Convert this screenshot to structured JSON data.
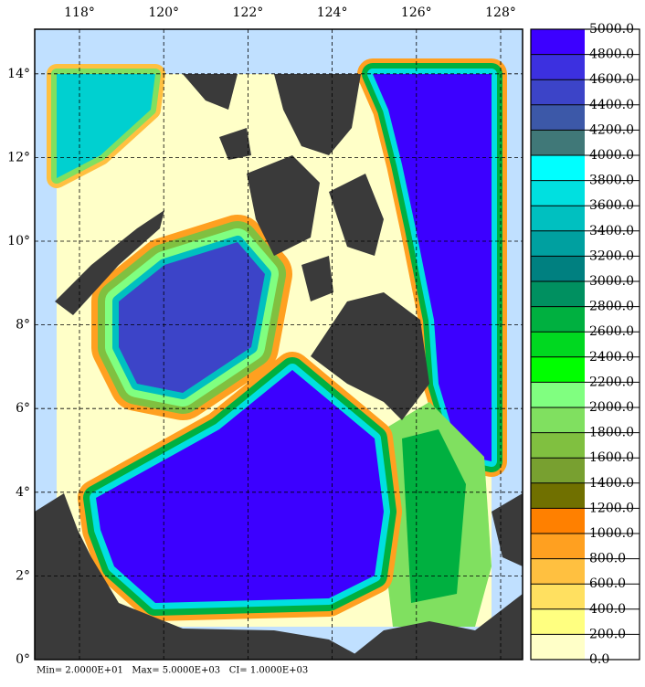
{
  "map": {
    "x_ticks": [
      {
        "value": 118,
        "label": "118°"
      },
      {
        "value": 120,
        "label": "120°"
      },
      {
        "value": 122,
        "label": "122°"
      },
      {
        "value": 124,
        "label": "124°"
      },
      {
        "value": 126,
        "label": "126°"
      },
      {
        "value": 128,
        "label": "128°"
      }
    ],
    "y_ticks": [
      {
        "value": 0,
        "label": "0°"
      },
      {
        "value": 2,
        "label": "2°"
      },
      {
        "value": 4,
        "label": "4°"
      },
      {
        "value": 6,
        "label": "6°"
      },
      {
        "value": 8,
        "label": "8°"
      },
      {
        "value": 10,
        "label": "10°"
      },
      {
        "value": 12,
        "label": "12°"
      },
      {
        "value": 14,
        "label": "14°"
      }
    ],
    "colorbar": {
      "levels": [
        {
          "value": 0,
          "label": "0.0"
        },
        {
          "value": 200,
          "label": "200.0"
        },
        {
          "value": 400,
          "label": "400.0"
        },
        {
          "value": 600,
          "label": "600.0"
        },
        {
          "value": 800,
          "label": "800.0"
        },
        {
          "value": 1000,
          "label": "1000.0"
        },
        {
          "value": 1200,
          "label": "1200.0"
        },
        {
          "value": 1400,
          "label": "1400.0"
        },
        {
          "value": 1600,
          "label": "1600.0"
        },
        {
          "value": 1800,
          "label": "1800.0"
        },
        {
          "value": 2000,
          "label": "2000.0"
        },
        {
          "value": 2200,
          "label": "2200.0"
        },
        {
          "value": 2400,
          "label": "2400.0"
        },
        {
          "value": 2600,
          "label": "2600.0"
        },
        {
          "value": 2800,
          "label": "2800.0"
        },
        {
          "value": 3000,
          "label": "3000.0"
        },
        {
          "value": 3200,
          "label": "3200.0"
        },
        {
          "value": 3400,
          "label": "3400.0"
        },
        {
          "value": 3600,
          "label": "3600.0"
        },
        {
          "value": 3800,
          "label": "3800.0"
        },
        {
          "value": 4000,
          "label": "4000.0"
        },
        {
          "value": 4200,
          "label": "4200.0"
        },
        {
          "value": 4400,
          "label": "4400.0"
        },
        {
          "value": 4600,
          "label": "4600.0"
        },
        {
          "value": 4800,
          "label": "4800.0"
        },
        {
          "value": 5000,
          "label": "5000.0"
        }
      ],
      "colors": [
        "#ffffc8",
        "#ffff80",
        "#ffe060",
        "#ffc040",
        "#ffa020",
        "#ff8000",
        "#707000",
        "#78a030",
        "#80c040",
        "#80e060",
        "#80ff80",
        "#00ff00",
        "#00d820",
        "#00b040",
        "#009060",
        "#008080",
        "#00a0a0",
        "#00c0c0",
        "#00e0e0",
        "#00ffff",
        "#407878",
        "#3c58a8",
        "#3c44c8",
        "#3c30e0",
        "#3c00ff"
      ]
    },
    "footer": "Min= 2.0000E+01   Max= 5.0000E+03   CI= 1.0000E+03"
  }
}
